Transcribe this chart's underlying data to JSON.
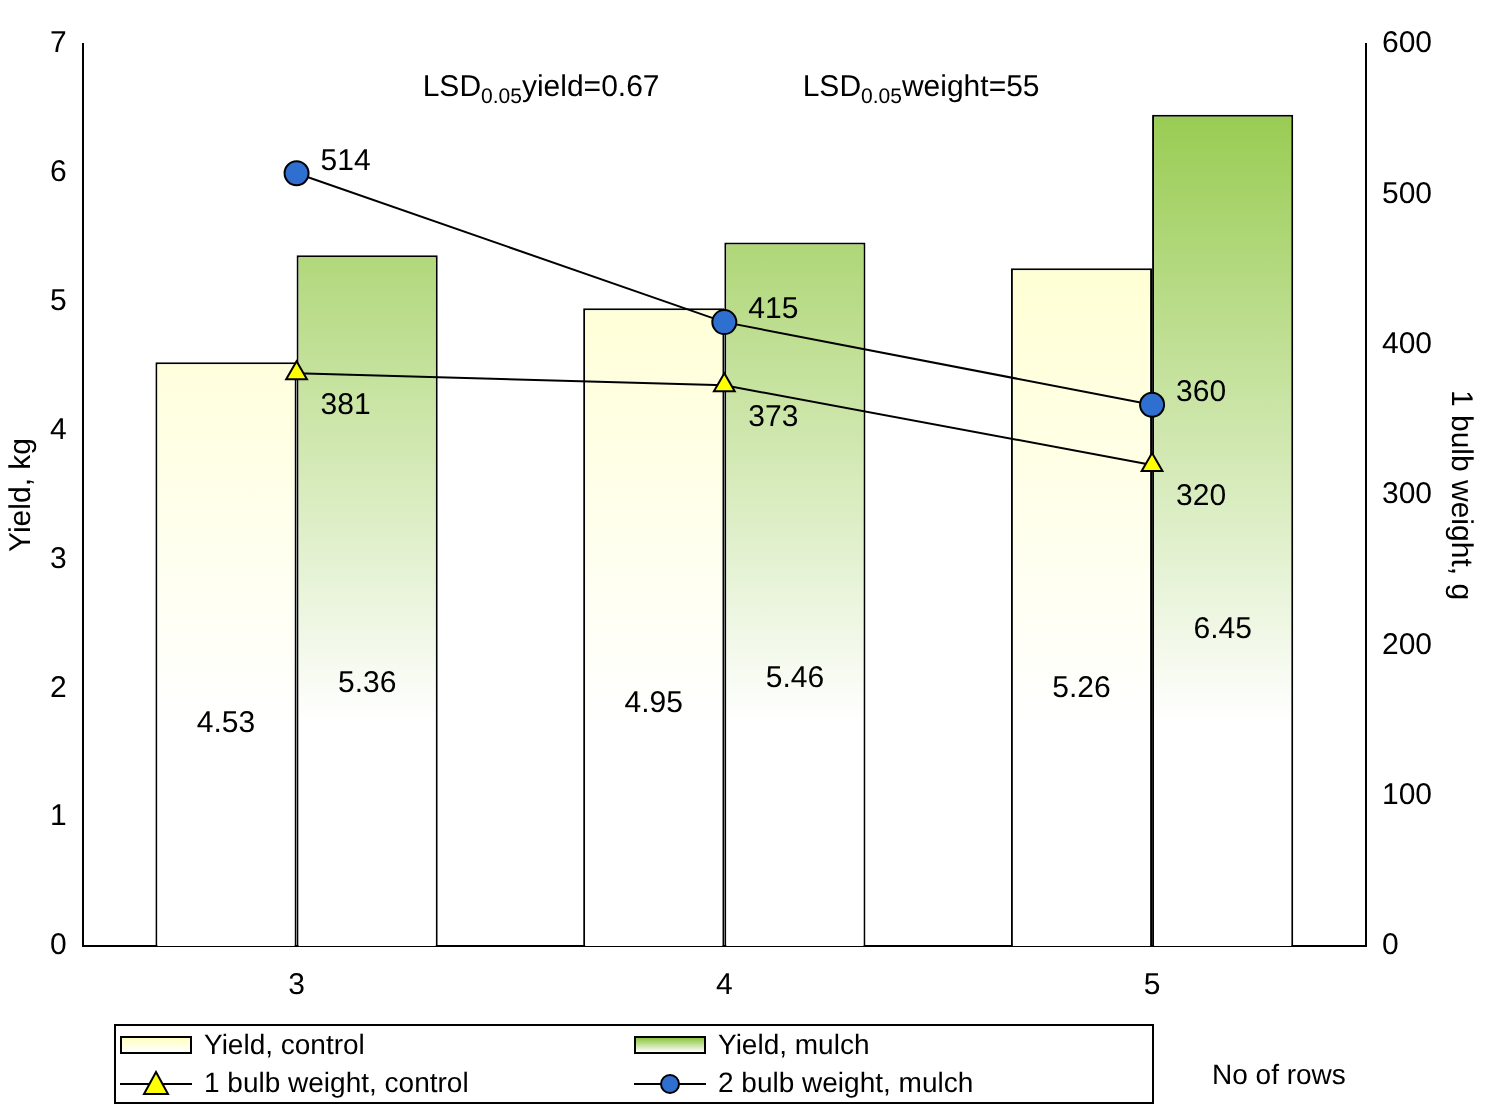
{
  "chart_data": {
    "type": "bar",
    "xlabel": "No of rows",
    "ylabel": "Yield, kg",
    "y2label": "1 bulb weight, g",
    "categories": [
      "3",
      "4",
      "5"
    ],
    "series": [
      {
        "name": "Yield, control",
        "color": "#ffffc0",
        "values": [
          4.53,
          4.95,
          5.26
        ]
      },
      {
        "name": "Yield, mulch",
        "color": "#8dc63f",
        "values": [
          5.36,
          5.46,
          6.45
        ]
      },
      {
        "name": "1 bulb weight, control",
        "type": "line",
        "axis": "y2",
        "marker": "triangle",
        "color": "#ffff00",
        "values": [
          381,
          373,
          320
        ]
      },
      {
        "name": "2 bulb weight, mulch",
        "type": "line",
        "axis": "y2",
        "marker": "circle",
        "color": "#2f6fd0",
        "values": [
          514,
          415,
          360
        ]
      }
    ],
    "ylim": [
      0,
      7
    ],
    "yticks": [
      0,
      1,
      2,
      3,
      4,
      5,
      6,
      7
    ],
    "y2lim": [
      0,
      600
    ],
    "y2ticks": [
      0,
      100,
      200,
      300,
      400,
      500,
      600
    ],
    "grid": false,
    "legend": "bottom",
    "data_labels": true,
    "annotations": [
      "LSD$_{0.05}$yield=0.67",
      "LSD$_{0.05}$weight=55"
    ]
  }
}
